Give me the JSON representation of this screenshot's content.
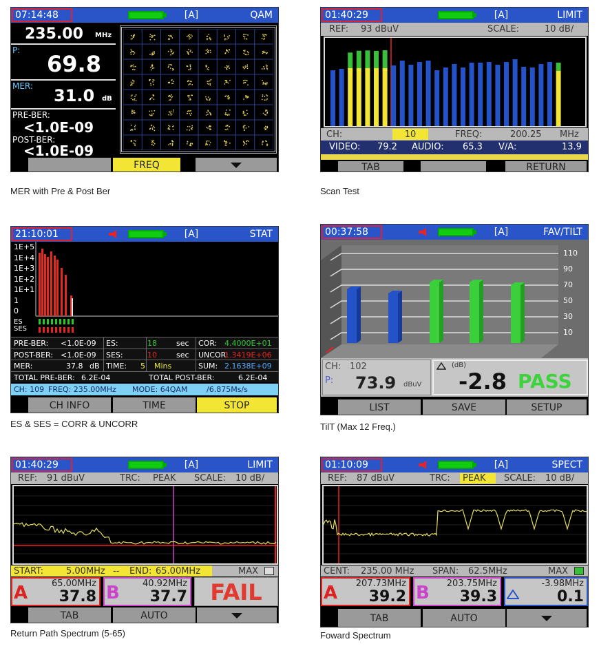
{
  "screens": [
    {
      "caption": "MER with Pre & Post Ber",
      "time": "07:14:48",
      "mode": "[A]",
      "label": "QAM",
      "freq": "235.00",
      "freq_unit": "MHz",
      "p_label": "P:",
      "p_value": "69.8",
      "mer_label": "MER:",
      "mer_value": "31.0",
      "mer_unit": "dB",
      "pre_label": "PRE-BER:",
      "pre_value": "<1.0E-09",
      "post_label": "POST-BER:",
      "post_value": "<1.0E-09",
      "softkeys": [
        "FREQ"
      ]
    },
    {
      "caption": "Scan Test",
      "time": "01:40:29",
      "mode": "[A]",
      "label": "LIMIT",
      "ref_label": "REF:",
      "ref_value": "93 dBuV",
      "scale_label": "SCALE:",
      "scale_value": "10 dB/",
      "ch_label": "CH:",
      "ch_value": "10",
      "freq_label": "FREQ:",
      "freq_value": "200.25",
      "freq_unit": "MHz",
      "video_label": "VIDEO:",
      "video_value": "79.2",
      "audio_label": "AUDIO:",
      "audio_value": "65.3",
      "va_label": "V/A:",
      "va_value": "13.9",
      "softkeys": [
        "TAB",
        "RETURN"
      ]
    },
    {
      "caption": "ES & SES = CORR & UNCORR",
      "time": "21:10:01",
      "mode": "[A]",
      "label": "STAT",
      "ylabels": [
        "1E+5",
        "1E+4",
        "1E+3",
        "1E+2",
        "1E+1",
        "1",
        "0"
      ],
      "es": "ES",
      "ses": "SES",
      "rows": [
        [
          "PRE-BER:",
          "<1.0E-09",
          "ES:",
          "18",
          "sec",
          "COR:",
          "4.4000E+01"
        ],
        [
          "POST-BER:",
          "<1.0E-09",
          "SES:",
          "10",
          "sec",
          "UNCOR:",
          "1.3419E+06"
        ],
        [
          "MER:",
          "37.8",
          "dB",
          "TIME:",
          "5",
          "Mins",
          "SUM:",
          "2.1638E+09"
        ]
      ],
      "totals": [
        "TOTAL PRE-BER:",
        "6.2E-04",
        "TOTAL POST-BER:",
        "6.2E-04"
      ],
      "status": [
        "CH: 109",
        "FREQ: 235.00MHz",
        "MODE: 64QAM",
        "/6.875Ms/s"
      ],
      "softkeys": [
        "CH INFO",
        "TIME",
        "STOP"
      ]
    },
    {
      "caption": "TilT (Max 12 Freq.)",
      "time": "00:37:58",
      "mode": "[A]",
      "label": "FAV/TILT",
      "yticks": [
        "110",
        "90",
        "70",
        "50",
        "30",
        "10"
      ],
      "ch_label": "CH:",
      "ch_value": "102",
      "p_label": "P:",
      "p_value": "73.9",
      "p_unit": "dBuV",
      "tilt_unit": "(dB)",
      "tilt_value": "-2.8",
      "result": "PASS",
      "softkeys": [
        "LIST",
        "SAVE",
        "SETUP"
      ]
    },
    {
      "caption": "Return Path Spectrum (5-65)",
      "time": "01:40:29",
      "mode": "[A]",
      "label": "LIMIT",
      "ref_label": "REF:",
      "ref_value": "91 dBuV",
      "trc_label": "TRC:",
      "trc_value": "PEAK",
      "scale_label": "SCALE:",
      "scale_value": "10 dB/",
      "start_label": "START:",
      "start_value": "5.00MHz",
      "sep": "--",
      "end_label": "END:",
      "end_value": "65.00MHz",
      "max_label": "MAX",
      "marker_a": {
        "name": "A",
        "freq": "65.00MHz",
        "level": "37.8"
      },
      "marker_b": {
        "name": "B",
        "freq": "40.92MHz",
        "level": "37.7"
      },
      "result": "FAIL",
      "softkeys": [
        "TAB",
        "AUTO"
      ]
    },
    {
      "caption": "Foward Spectrum",
      "time": "01:10:09",
      "mode": "[A]",
      "label": "SPECT",
      "ref_label": "REF:",
      "ref_value": "87 dBuV",
      "trc_label": "TRC:",
      "trc_value": "PEAK",
      "scale_label": "SCALE:",
      "scale_value": "10 dB/",
      "cent_label": "CENT:",
      "cent_value": "235.00 MHz",
      "span_label": "SPAN:",
      "span_value": "62.5MHz",
      "max_label": "MAX",
      "marker_a": {
        "name": "A",
        "freq": "207.73MHz",
        "level": "39.2"
      },
      "marker_b": {
        "name": "B",
        "freq": "203.75MHz",
        "level": "39.3"
      },
      "delta": {
        "freq": "-3.98MHz",
        "level": "0.1"
      },
      "softkeys": [
        "TAB",
        "AUTO"
      ]
    }
  ]
}
